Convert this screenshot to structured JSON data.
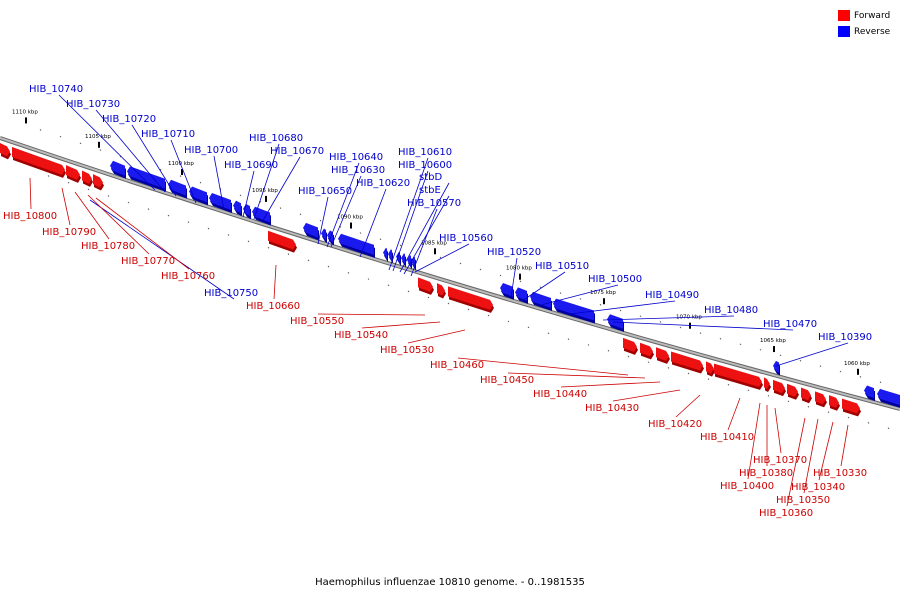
{
  "caption": "Haemophilus influenzae 10810 genome. - 0..1981535",
  "legend": [
    {
      "label": "Forward",
      "color": "#ff0000"
    },
    {
      "label": "Reverse",
      "color": "#0000ff"
    }
  ],
  "colors": {
    "forward": "#ee1111",
    "forward_dark": "#a00000",
    "reverse": "#1a1aee",
    "reverse_dark": "#0000a0",
    "axis": "#888888",
    "label_forward": "#cc0000",
    "label_reverse": "#0000cc"
  },
  "ticks": [
    "1110 kbp",
    "1105 kbp",
    "1100 kbp",
    "1095 kbp",
    "1090 kbp",
    "1085 kbp",
    "1080 kbp",
    "1075 kbp",
    "1070 kbp",
    "1065 kbp",
    "1060 kbp"
  ],
  "reverse_genes": [
    "HIB_10740",
    "HIB_10730",
    "HIB_10720",
    "HIB_10710",
    "HIB_10700",
    "HIB_10690",
    "HIB_10680",
    "HIB_10670",
    "HIB_10650",
    "HIB_10640",
    "HIB_10630",
    "HIB_10620",
    "HIB_10610",
    "HIB_10600",
    "stbD",
    "stbE",
    "HIB_10570",
    "HIB_10560",
    "HIB_10520",
    "HIB_10510",
    "HIB_10500",
    "HIB_10490",
    "HIB_10480",
    "HIB_10470",
    "HIB_10390",
    "HIB_10750"
  ],
  "forward_genes": [
    "HIB_10800",
    "HIB_10790",
    "HIB_10780",
    "HIB_10770",
    "HIB_10760",
    "HIB_10660",
    "HIB_10550",
    "HIB_10540",
    "HIB_10530",
    "HIB_10460",
    "HIB_10450",
    "HIB_10440",
    "HIB_10430",
    "HIB_10420",
    "HIB_10410",
    "HIB_10370",
    "HIB_10380",
    "HIB_10400",
    "HIB_10330",
    "HIB_10340",
    "HIB_10350",
    "HIB_10360"
  ]
}
